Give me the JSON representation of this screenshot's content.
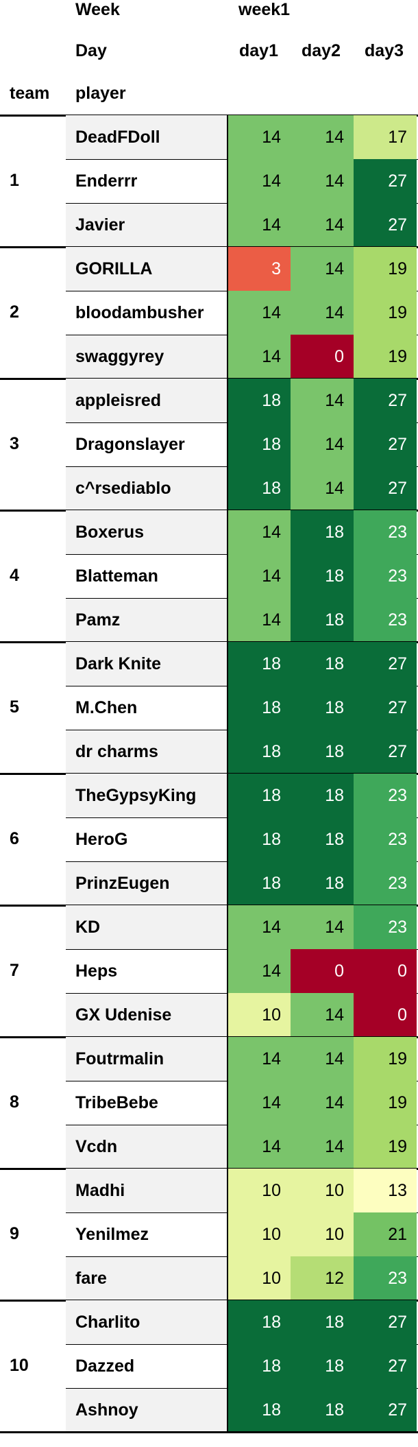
{
  "headers": {
    "week_label": "Week",
    "week_value": "week1",
    "day_label": "Day",
    "days": [
      "day1",
      "day2",
      "day3"
    ],
    "team_label": "team",
    "player_label": "player"
  },
  "teams": [
    {
      "team": "1",
      "players": [
        {
          "name": "DeadFDoll",
          "scores": [
            14,
            14,
            17
          ]
        },
        {
          "name": "Enderrr",
          "scores": [
            14,
            14,
            27
          ]
        },
        {
          "name": "Javier",
          "scores": [
            14,
            14,
            27
          ]
        }
      ]
    },
    {
      "team": "2",
      "players": [
        {
          "name": "GORILLA",
          "scores": [
            3,
            14,
            19
          ]
        },
        {
          "name": "bloodambusher",
          "scores": [
            14,
            14,
            19
          ]
        },
        {
          "name": "swaggyrey",
          "scores": [
            14,
            0,
            19
          ]
        }
      ]
    },
    {
      "team": "3",
      "players": [
        {
          "name": "appleisred",
          "scores": [
            18,
            14,
            27
          ]
        },
        {
          "name": "Dragonslayer",
          "scores": [
            18,
            14,
            27
          ]
        },
        {
          "name": "c^rsediablo",
          "scores": [
            18,
            14,
            27
          ]
        }
      ]
    },
    {
      "team": "4",
      "players": [
        {
          "name": "Boxerus",
          "scores": [
            14,
            18,
            23
          ]
        },
        {
          "name": "Blatteman",
          "scores": [
            14,
            18,
            23
          ]
        },
        {
          "name": "Pamz",
          "scores": [
            14,
            18,
            23
          ]
        }
      ]
    },
    {
      "team": "5",
      "players": [
        {
          "name": "Dark Knite",
          "scores": [
            18,
            18,
            27
          ]
        },
        {
          "name": "M.Chen",
          "scores": [
            18,
            18,
            27
          ]
        },
        {
          "name": "dr charms",
          "scores": [
            18,
            18,
            27
          ]
        }
      ]
    },
    {
      "team": "6",
      "players": [
        {
          "name": "TheGypsyKing",
          "scores": [
            18,
            18,
            23
          ]
        },
        {
          "name": "HeroG",
          "scores": [
            18,
            18,
            23
          ]
        },
        {
          "name": "PrinzEugen",
          "scores": [
            18,
            18,
            23
          ]
        }
      ]
    },
    {
      "team": "7",
      "players": [
        {
          "name": "KD",
          "scores": [
            14,
            14,
            23
          ]
        },
        {
          "name": "Heps",
          "scores": [
            14,
            0,
            0
          ]
        },
        {
          "name": "GX Udenise",
          "scores": [
            10,
            14,
            0
          ]
        }
      ]
    },
    {
      "team": "8",
      "players": [
        {
          "name": "Foutrmalin",
          "scores": [
            14,
            14,
            19
          ]
        },
        {
          "name": "TribeBebe",
          "scores": [
            14,
            14,
            19
          ]
        },
        {
          "name": "Vcdn",
          "scores": [
            14,
            14,
            19
          ]
        }
      ]
    },
    {
      "team": "9",
      "players": [
        {
          "name": "Madhi",
          "scores": [
            10,
            10,
            13
          ]
        },
        {
          "name": "Yenilmez",
          "scores": [
            10,
            10,
            21
          ]
        },
        {
          "name": "fare",
          "scores": [
            10,
            12,
            23
          ]
        }
      ]
    },
    {
      "team": "10",
      "players": [
        {
          "name": "Charlito",
          "scores": [
            18,
            18,
            27
          ]
        },
        {
          "name": "Dazzed",
          "scores": [
            18,
            18,
            27
          ]
        },
        {
          "name": "Ashnoy",
          "scores": [
            18,
            18,
            27
          ]
        }
      ]
    }
  ],
  "score_colors": {
    "0": "#a50026",
    "3": "#eb5d45",
    "10": "#e6f4a0",
    "12": "#b5dd75",
    "13": "#fdfec0",
    "14": "#7ac46b",
    "17": "#cde98a",
    "18": "#0a6d39",
    "19": "#a8d96a",
    "21": "#74c264",
    "23": "#3fa85a",
    "27": "#0a6d39"
  },
  "light_text_values": [
    0,
    3,
    18,
    23,
    27
  ]
}
